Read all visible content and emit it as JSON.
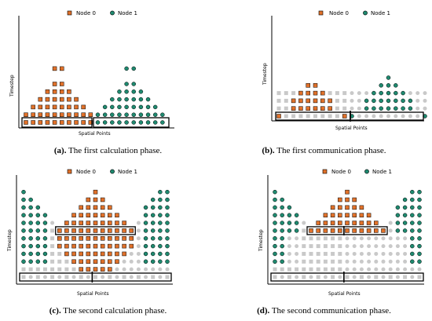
{
  "legend": {
    "node0": "Node 0",
    "node1": "Node 1"
  },
  "axes": {
    "xlabel": "Spatial Points",
    "ylabel": "Timestep"
  },
  "colors": {
    "node0": "#e0712a",
    "node1": "#1f8a70",
    "grey": "#c9c9c9",
    "outline": "#000000"
  },
  "panels": [
    {
      "id": "a",
      "caption_tag": "(a).",
      "caption_text": " The first calculation phase.",
      "xlabel_shown": true
    },
    {
      "id": "b",
      "caption_tag": "(b).",
      "caption_text": " The first communication phase.",
      "xlabel_shown": true
    },
    {
      "id": "c",
      "caption_tag": "(c).",
      "caption_text": " The second calculation phase.",
      "xlabel_shown": false
    },
    {
      "id": "d",
      "caption_tag": "(d).",
      "caption_text": " The second communication phase.",
      "xlabel_shown": false
    }
  ]
}
